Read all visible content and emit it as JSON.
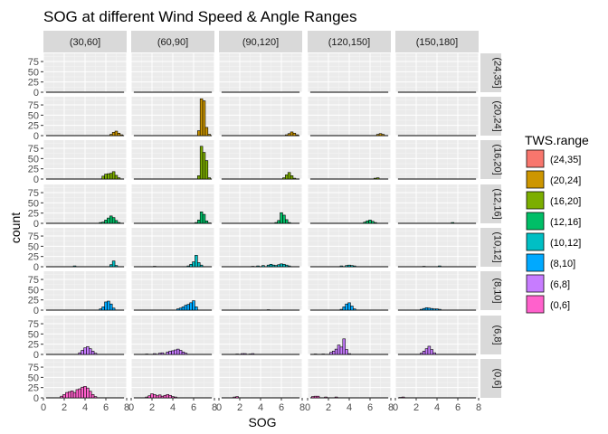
{
  "chart_data": {
    "type": "histogram",
    "title": "SOG at different Wind Speed & Angle Ranges",
    "xlabel": "SOG",
    "ylabel": "count",
    "xlim": [
      0,
      8
    ],
    "ylim": [
      0,
      95
    ],
    "x_ticks": [
      "0",
      "2",
      "4",
      "6",
      "8"
    ],
    "y_ticks": [
      "0",
      "25",
      "50",
      "75"
    ],
    "columns": [
      "(30,60]",
      "(60,90]",
      "(90,120]",
      "(120,150]",
      "(150,180]"
    ],
    "rows": [
      "(24,35]",
      "(20,24]",
      "(16,20]",
      "(12,16]",
      "(10,12]",
      "(8,10]",
      "(6,8]",
      "(0,6]"
    ],
    "legend": {
      "title": "TWS.range",
      "position": "right",
      "entries": [
        "(24,35]",
        "(20,24]",
        "(16,20]",
        "(12,16]",
        "(10,12]",
        "(8,10]",
        "(6,8]",
        "(0,6]"
      ]
    },
    "colors": [
      "#F8766D",
      "#CD9600",
      "#7CAE00",
      "#00BE67",
      "#00BFC4",
      "#00A9FF",
      "#C77CFF",
      "#FF61CC"
    ],
    "bin_width": 0.25,
    "grid": true,
    "bars": [
      {
        "row": 1,
        "col": 0,
        "bins": [
          [
            6.5,
            3
          ],
          [
            6.75,
            8
          ],
          [
            7.0,
            11
          ],
          [
            7.25,
            6
          ],
          [
            7.5,
            2
          ]
        ]
      },
      {
        "row": 1,
        "col": 1,
        "bins": [
          [
            6.5,
            12
          ],
          [
            6.75,
            90
          ],
          [
            7.0,
            85
          ],
          [
            7.25,
            20
          ],
          [
            7.5,
            3
          ]
        ]
      },
      {
        "row": 1,
        "col": 2,
        "bins": [
          [
            6.5,
            2
          ],
          [
            6.75,
            5
          ],
          [
            7.0,
            9
          ],
          [
            7.25,
            6
          ],
          [
            7.5,
            2
          ]
        ]
      },
      {
        "row": 1,
        "col": 3,
        "bins": [
          [
            6.75,
            3
          ],
          [
            7.0,
            5
          ],
          [
            7.25,
            3
          ]
        ]
      },
      {
        "row": 2,
        "col": 0,
        "bins": [
          [
            5.75,
            7
          ],
          [
            6.0,
            12
          ],
          [
            6.25,
            13
          ],
          [
            6.5,
            14
          ],
          [
            6.75,
            18
          ],
          [
            7.0,
            9
          ],
          [
            7.25,
            3
          ]
        ]
      },
      {
        "row": 2,
        "col": 1,
        "bins": [
          [
            6.5,
            8
          ],
          [
            6.75,
            80
          ],
          [
            7.0,
            65
          ],
          [
            7.25,
            45
          ],
          [
            7.5,
            3
          ]
        ]
      },
      {
        "row": 2,
        "col": 2,
        "bins": [
          [
            6.25,
            3
          ],
          [
            6.5,
            10
          ],
          [
            6.75,
            16
          ],
          [
            7.0,
            8
          ],
          [
            7.25,
            2
          ]
        ]
      },
      {
        "row": 2,
        "col": 3,
        "bins": [
          [
            6.5,
            2
          ],
          [
            6.75,
            3
          ]
        ]
      },
      {
        "row": 3,
        "col": 0,
        "bins": [
          [
            5.5,
            2
          ],
          [
            5.75,
            3
          ],
          [
            6.0,
            8
          ],
          [
            6.25,
            13
          ],
          [
            6.5,
            18
          ],
          [
            6.75,
            14
          ],
          [
            7.0,
            7
          ],
          [
            7.25,
            2
          ]
        ]
      },
      {
        "row": 3,
        "col": 1,
        "bins": [
          [
            6.25,
            2
          ],
          [
            6.5,
            8
          ],
          [
            6.75,
            28
          ],
          [
            7.0,
            22
          ],
          [
            7.25,
            6
          ],
          [
            7.5,
            1
          ]
        ]
      },
      {
        "row": 3,
        "col": 2,
        "bins": [
          [
            5.5,
            2
          ],
          [
            5.75,
            7
          ],
          [
            6.0,
            26
          ],
          [
            6.25,
            20
          ],
          [
            6.5,
            9
          ],
          [
            6.75,
            2
          ]
        ]
      },
      {
        "row": 3,
        "col": 3,
        "bins": [
          [
            5.5,
            3
          ],
          [
            5.75,
            6
          ],
          [
            6.0,
            8
          ],
          [
            6.25,
            5
          ],
          [
            6.5,
            2
          ]
        ]
      },
      {
        "row": 3,
        "col": 4,
        "bins": [
          [
            5.5,
            2
          ]
        ]
      },
      {
        "row": 4,
        "col": 0,
        "bins": [
          [
            3.0,
            2
          ],
          [
            6.5,
            5
          ],
          [
            6.75,
            14
          ],
          [
            7.0,
            3
          ]
        ]
      },
      {
        "row": 4,
        "col": 1,
        "bins": [
          [
            2.25,
            1
          ],
          [
            5.5,
            2
          ],
          [
            5.75,
            6
          ],
          [
            6.0,
            12
          ],
          [
            6.25,
            28
          ],
          [
            6.5,
            10
          ],
          [
            6.75,
            4
          ]
        ]
      },
      {
        "row": 4,
        "col": 2,
        "bins": [
          [
            3.25,
            1
          ],
          [
            3.75,
            2
          ],
          [
            4.25,
            3
          ],
          [
            4.75,
            4
          ],
          [
            5.0,
            6
          ],
          [
            5.25,
            4
          ],
          [
            5.5,
            3
          ],
          [
            5.75,
            5
          ],
          [
            6.0,
            7
          ],
          [
            6.25,
            6
          ],
          [
            6.5,
            4
          ],
          [
            6.75,
            2
          ]
        ]
      },
      {
        "row": 4,
        "col": 3,
        "bins": [
          [
            3.25,
            2
          ],
          [
            3.75,
            3
          ],
          [
            4.0,
            4
          ],
          [
            4.25,
            3
          ],
          [
            4.5,
            2
          ]
        ]
      },
      {
        "row": 4,
        "col": 4,
        "bins": [
          [
            2.75,
            1
          ],
          [
            4.25,
            2
          ]
        ]
      },
      {
        "row": 5,
        "col": 0,
        "bins": [
          [
            5.5,
            3
          ],
          [
            5.75,
            8
          ],
          [
            6.0,
            20
          ],
          [
            6.25,
            22
          ],
          [
            6.5,
            15
          ],
          [
            6.75,
            5
          ]
        ]
      },
      {
        "row": 5,
        "col": 1,
        "bins": [
          [
            4.5,
            3
          ],
          [
            4.75,
            5
          ],
          [
            5.0,
            8
          ],
          [
            5.25,
            12
          ],
          [
            5.5,
            14
          ],
          [
            5.75,
            18
          ],
          [
            6.0,
            23
          ],
          [
            6.25,
            8
          ]
        ]
      },
      {
        "row": 5,
        "col": 2,
        "bins": [
          [
            4.75,
            1
          ]
        ]
      },
      {
        "row": 5,
        "col": 3,
        "bins": [
          [
            3.25,
            2
          ],
          [
            3.5,
            8
          ],
          [
            3.75,
            15
          ],
          [
            4.0,
            18
          ],
          [
            4.25,
            10
          ],
          [
            4.5,
            3
          ]
        ]
      },
      {
        "row": 5,
        "col": 4,
        "bins": [
          [
            2.5,
            2
          ],
          [
            2.75,
            4
          ],
          [
            3.0,
            6
          ],
          [
            3.25,
            5
          ],
          [
            3.5,
            4
          ],
          [
            3.75,
            3
          ],
          [
            4.0,
            3
          ],
          [
            4.25,
            2
          ]
        ]
      },
      {
        "row": 6,
        "col": 0,
        "bins": [
          [
            3.5,
            4
          ],
          [
            3.75,
            10
          ],
          [
            4.0,
            16
          ],
          [
            4.25,
            19
          ],
          [
            4.5,
            14
          ],
          [
            4.75,
            8
          ],
          [
            5.0,
            3
          ]
        ]
      },
      {
        "row": 6,
        "col": 1,
        "bins": [
          [
            1.5,
            1
          ],
          [
            2.25,
            2
          ],
          [
            2.75,
            3
          ],
          [
            3.0,
            4
          ],
          [
            3.5,
            6
          ],
          [
            3.75,
            8
          ],
          [
            4.0,
            9
          ],
          [
            4.25,
            11
          ],
          [
            4.5,
            13
          ],
          [
            4.75,
            10
          ],
          [
            5.0,
            6
          ],
          [
            5.25,
            3
          ]
        ]
      },
      {
        "row": 6,
        "col": 2,
        "bins": [
          [
            1.75,
            1
          ],
          [
            2.25,
            2
          ],
          [
            2.5,
            2
          ],
          [
            3.0,
            1
          ],
          [
            3.25,
            2
          ]
        ]
      },
      {
        "row": 6,
        "col": 3,
        "bins": [
          [
            0.75,
            1
          ],
          [
            1.5,
            1
          ],
          [
            2.25,
            5
          ],
          [
            2.5,
            8
          ],
          [
            2.75,
            13
          ],
          [
            3.0,
            23
          ],
          [
            3.25,
            18
          ],
          [
            3.5,
            38
          ],
          [
            3.75,
            12
          ],
          [
            4.0,
            2
          ]
        ]
      },
      {
        "row": 6,
        "col": 4,
        "bins": [
          [
            2.5,
            3
          ],
          [
            2.75,
            8
          ],
          [
            3.0,
            14
          ],
          [
            3.25,
            20
          ],
          [
            3.5,
            12
          ],
          [
            3.75,
            4
          ]
        ]
      },
      {
        "row": 7,
        "col": 0,
        "bins": [
          [
            1.75,
            4
          ],
          [
            2.0,
            8
          ],
          [
            2.25,
            13
          ],
          [
            2.5,
            15
          ],
          [
            2.75,
            17
          ],
          [
            3.0,
            13
          ],
          [
            3.25,
            20
          ],
          [
            3.5,
            22
          ],
          [
            3.75,
            26
          ],
          [
            4.0,
            28
          ],
          [
            4.25,
            24
          ],
          [
            4.5,
            16
          ],
          [
            4.75,
            8
          ],
          [
            5.0,
            3
          ]
        ]
      },
      {
        "row": 7,
        "col": 1,
        "bins": [
          [
            1.5,
            2
          ],
          [
            1.75,
            5
          ],
          [
            2.0,
            10
          ],
          [
            2.25,
            8
          ],
          [
            2.5,
            5
          ],
          [
            2.75,
            7
          ],
          [
            3.0,
            4
          ],
          [
            3.25,
            6
          ],
          [
            3.5,
            8
          ],
          [
            3.75,
            6
          ],
          [
            4.0,
            3
          ],
          [
            4.25,
            2
          ]
        ]
      },
      {
        "row": 7,
        "col": 2,
        "bins": [
          [
            1.5,
            2
          ],
          [
            1.75,
            3
          ]
        ]
      },
      {
        "row": 7,
        "col": 3,
        "bins": [
          [
            0.5,
            3
          ],
          [
            0.75,
            4
          ],
          [
            1.0,
            4
          ],
          [
            1.75,
            2
          ],
          [
            2.75,
            2
          ]
        ]
      },
      {
        "row": 7,
        "col": 4,
        "bins": [
          [
            0.5,
            1
          ],
          [
            0.75,
            2
          ]
        ]
      }
    ]
  }
}
